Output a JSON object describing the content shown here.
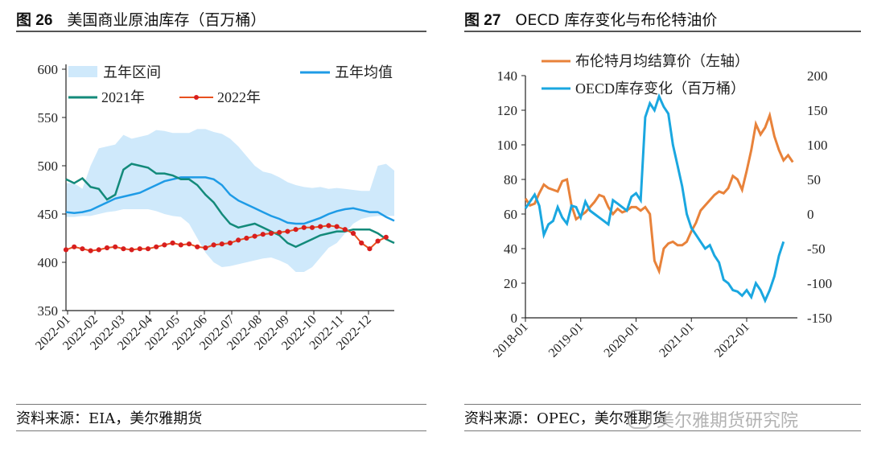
{
  "left": {
    "fig_num": "图 26",
    "title": "美国商业原油库存（百万桶）",
    "source": "资料来源：EIA，美尔雅期货",
    "chart_data": {
      "type": "line",
      "y_ticks": [
        350,
        400,
        450,
        500,
        550,
        600
      ],
      "ylim": [
        350,
        600
      ],
      "x_ticks": [
        "2022-01",
        "2022-02",
        "2022-03",
        "2022-04",
        "2022-05",
        "2022-06",
        "2022-07",
        "2022-08",
        "2022-09",
        "2022-10",
        "2022-11",
        "2022-12"
      ],
      "legend": [
        {
          "name": "五年区间",
          "color": "#cfe9fb"
        },
        {
          "name": "五年均值",
          "color": "#1e9be6"
        },
        {
          "name": "2021年",
          "color": "#138a7a"
        },
        {
          "name": "2022年",
          "color": "#e8501f"
        }
      ],
      "band_upper": [
        482,
        482,
        476,
        500,
        518,
        520,
        522,
        532,
        528,
        530,
        532,
        537,
        536,
        534,
        534,
        534,
        538,
        538,
        535,
        533,
        528,
        520,
        510,
        500,
        494,
        492,
        488,
        483,
        480,
        478,
        477,
        478,
        476,
        477,
        476,
        475,
        474,
        474,
        500,
        502,
        495
      ],
      "band_lower": [
        447,
        447,
        448,
        448,
        450,
        452,
        453,
        455,
        455,
        455,
        455,
        453,
        450,
        448,
        447,
        440,
        425,
        410,
        400,
        395,
        396,
        398,
        400,
        402,
        404,
        405,
        402,
        398,
        390,
        390,
        395,
        405,
        415,
        420,
        430,
        440,
        445,
        447,
        448,
        448,
        448
      ],
      "five_year_avg": [
        452,
        451,
        452,
        454,
        458,
        462,
        466,
        468,
        470,
        472,
        476,
        480,
        484,
        486,
        488,
        488,
        488,
        488,
        486,
        480,
        470,
        464,
        460,
        456,
        452,
        448,
        445,
        441,
        440,
        440,
        443,
        446,
        450,
        453,
        455,
        456,
        454,
        452,
        452,
        447,
        443
      ],
      "y2021": [
        486,
        482,
        487,
        478,
        476,
        465,
        470,
        496,
        502,
        500,
        498,
        492,
        492,
        490,
        486,
        486,
        480,
        470,
        462,
        450,
        440,
        436,
        438,
        440,
        436,
        432,
        428,
        420,
        416,
        420,
        424,
        428,
        430,
        432,
        432,
        434,
        434,
        434,
        430,
        424,
        420
      ],
      "y2022": [
        413,
        416,
        414,
        412,
        413,
        415,
        416,
        414,
        413,
        414,
        414,
        416,
        418,
        420,
        418,
        419,
        416,
        415,
        418,
        419,
        420,
        423,
        425,
        427,
        429,
        430,
        431,
        432,
        434,
        436,
        436,
        437,
        438,
        437,
        434,
        430,
        420,
        414,
        422,
        426
      ]
    }
  },
  "right": {
    "fig_num": "图 27",
    "title": "OECD 库存变化与布伦特油价",
    "source": "资料来源：OPEC，美尔雅期货",
    "watermark": "美尔雅期货研究院",
    "chart_data": {
      "type": "line",
      "y_left_ticks": [
        0,
        20,
        40,
        60,
        80,
        100,
        120,
        140
      ],
      "ylim_left": [
        0,
        140
      ],
      "y_right_ticks": [
        200,
        150,
        100,
        50,
        0,
        -50,
        -100,
        -150
      ],
      "ylim_right": [
        -150,
        200
      ],
      "x_ticks": [
        "2018-01",
        "2019-01",
        "2020-01",
        "2021-01",
        "2022-01"
      ],
      "legend": [
        {
          "name": "布伦特月均结算价（左轴）",
          "color": "#e8823a"
        },
        {
          "name": "OECD库存变化（百万桶）",
          "color": "#1aa7e0"
        }
      ],
      "brent": [
        69,
        65,
        66,
        72,
        77,
        75,
        74,
        73,
        79,
        80,
        65,
        57,
        59,
        61,
        64,
        67,
        71,
        70,
        64,
        60,
        63,
        61,
        62,
        64,
        64,
        62,
        64,
        60,
        33,
        27,
        40,
        43,
        44,
        42,
        42,
        44,
        50,
        55,
        62,
        65,
        68,
        71,
        73,
        72,
        75,
        82,
        80,
        74,
        85,
        97,
        112,
        106,
        110,
        117,
        105,
        97,
        91,
        94,
        90
      ]
    }
  }
}
